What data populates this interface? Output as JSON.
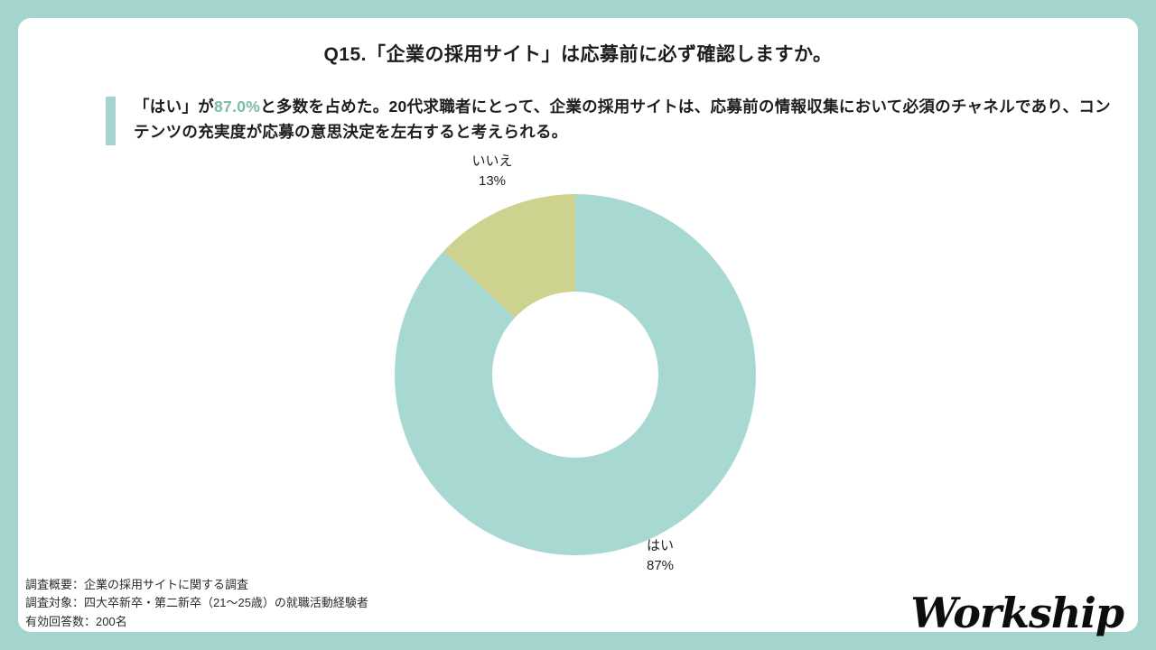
{
  "slide": {
    "title": "Q15.「企業の採用サイト」は応募前に必ず確認しますか。",
    "summary": {
      "before": "「はい」が",
      "highlight": "87.0%",
      "after": "と多数を占めた。20代求職者にとって、企業の採用サイトは、応募前の情報収集において必須のチャネルであり、コンテンツの充実度が応募の意思決定を左右すると考えられる。"
    },
    "footer_lines": [
      "調査概要：企業の採用サイトに関する調査",
      "調査対象：四大卒新卒・第二新卒（21〜25歳）の就職活動経験者",
      "有効回答数：200名"
    ],
    "logo_text": "Workship"
  },
  "colors": {
    "background_frame": "#a5d4ce",
    "card": "#ffffff",
    "accent_bar": "#a5d4ce",
    "highlight_text": "#7dbcab",
    "text": "#1e1e1e"
  },
  "chart_data": {
    "type": "pie",
    "subtype": "donut",
    "title": "Q15.「企業の採用サイト」は応募前に必ず確認しますか。",
    "categories": [
      "はい",
      "いいえ"
    ],
    "values": [
      87,
      13
    ],
    "unit": "%",
    "colors": [
      "#a8d8d2",
      "#cdd38f"
    ],
    "labels": [
      {
        "name": "はい",
        "value_text": "87%"
      },
      {
        "name": "いいえ",
        "value_text": "13%"
      }
    ],
    "start_angle_deg": 0,
    "direction": "clockwise",
    "legend": "none",
    "inner_radius_ratio": 0.46
  }
}
